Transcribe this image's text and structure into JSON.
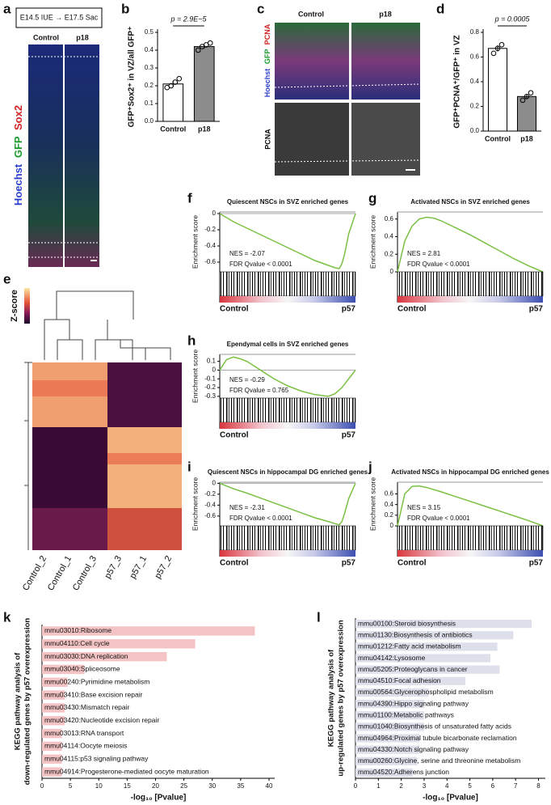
{
  "panel_labels": [
    "a",
    "b",
    "c",
    "d",
    "e",
    "f",
    "g",
    "h",
    "i",
    "j",
    "k",
    "l"
  ],
  "panel_a": {
    "header": "E14.5 IUE → E17.5 Sac",
    "columns": [
      "Control",
      "p18"
    ],
    "stains": [
      "Hoechst",
      "GFP",
      "Sox2"
    ]
  },
  "panel_c": {
    "columns": [
      "Control",
      "p18"
    ],
    "stains": [
      "Hoechst",
      "GFP",
      "PCNA"
    ],
    "stain_bottom": "PCNA"
  },
  "panel_e": {
    "legend_title": "Z-score",
    "samples": [
      "Control_2",
      "Control_1",
      "Control_3",
      "p57_3",
      "p57_1",
      "p57_2"
    ]
  },
  "chart_data": [
    {
      "type": "bar",
      "ylabel": "GFP⁺Sox2⁺ in VZ/all GFP⁺",
      "annotation": "p = 2.9E−5",
      "categories": [
        "Control",
        "p18"
      ],
      "values": [
        0.21,
        0.42
      ],
      "errors": [
        0.015,
        0.012
      ],
      "points": [
        [
          0.19,
          0.2,
          0.22,
          0.24
        ],
        [
          0.4,
          0.42,
          0.43,
          0.44
        ]
      ],
      "colors": [
        "#ffffff",
        "#8c8c8c"
      ],
      "ylim": [
        0,
        0.5
      ],
      "yticks": [
        {
          "value": 0,
          "label": "0.0"
        },
        0.1,
        0.2,
        0.3,
        0.4,
        0.5
      ]
    },
    {
      "type": "bar",
      "ylabel": "GFP⁺PCNA⁺/GFP⁺ in VZ",
      "annotation": "p = 0.0005",
      "categories": [
        "Control",
        "p18"
      ],
      "values": [
        0.67,
        0.28
      ],
      "errors": [
        0.025,
        0.02
      ],
      "points": [
        [
          0.63,
          0.67,
          0.7
        ],
        [
          0.25,
          0.28,
          0.31
        ]
      ],
      "colors": [
        "#ffffff",
        "#8c8c8c"
      ],
      "ylim": [
        0,
        0.8
      ],
      "yticks": [
        {
          "value": 0,
          "label": "0.0"
        },
        0.2,
        0.4,
        0.6,
        0.8
      ]
    },
    {
      "type": "line",
      "title": "Quiescent NSCs in SVZ enriched genes",
      "ylabel": "Enrichment score",
      "annotations": [
        "NES = -2.07",
        "FDR Qvalue < 0.0001"
      ],
      "left_label": "Control",
      "right_label": "p57",
      "color": "#7ac143",
      "x": [
        0,
        5,
        10,
        20,
        30,
        40,
        50,
        60,
        70,
        80,
        85,
        88,
        90,
        92,
        95,
        100
      ],
      "values": [
        0,
        -0.05,
        -0.1,
        -0.18,
        -0.26,
        -0.34,
        -0.42,
        -0.5,
        -0.58,
        -0.64,
        -0.67,
        -0.68,
        -0.62,
        -0.5,
        -0.25,
        0
      ],
      "xlim": [
        0,
        100
      ],
      "ylim": [
        -0.72,
        0.02
      ],
      "yticks": [
        0,
        -0.2,
        -0.4,
        -0.6
      ]
    },
    {
      "type": "line",
      "title": "Activated NSCs in SVZ enriched genes",
      "ylabel": "Enrichment score",
      "annotations": [
        "NES = 2.81",
        "FDR Qvalue < 0.0001"
      ],
      "left_label": "Control",
      "right_label": "p57",
      "color": "#7ac143",
      "x": [
        0,
        5,
        10,
        15,
        20,
        25,
        30,
        40,
        50,
        60,
        70,
        80,
        90,
        100
      ],
      "values": [
        0,
        0.35,
        0.52,
        0.6,
        0.62,
        0.61,
        0.58,
        0.5,
        0.42,
        0.33,
        0.24,
        0.15,
        0.07,
        0
      ],
      "xlim": [
        0,
        100
      ],
      "ylim": [
        0,
        0.68
      ],
      "yticks": [
        0,
        0.2,
        0.4,
        0.6
      ]
    },
    {
      "type": "line",
      "title": "Ependymal cells in SVZ enriched genes",
      "ylabel": "Enrichment score",
      "annotations": [
        "NES = -0.29",
        "FDR Qvalue = 0.765"
      ],
      "left_label": "Control",
      "right_label": "p57",
      "color": "#7ac143",
      "x": [
        0,
        5,
        10,
        15,
        20,
        30,
        40,
        50,
        60,
        70,
        75,
        80,
        85,
        90,
        95,
        100
      ],
      "values": [
        0,
        0.12,
        0.15,
        0.13,
        0.1,
        0,
        -0.1,
        -0.18,
        -0.24,
        -0.28,
        -0.29,
        -0.3,
        -0.27,
        -0.2,
        -0.1,
        0
      ],
      "xlim": [
        0,
        100
      ],
      "ylim": [
        -0.32,
        0.18
      ],
      "yticks": [
        0.1,
        0,
        -0.1,
        -0.2,
        -0.3
      ]
    },
    {
      "type": "line",
      "title": "Quiescent NSCs in hippocampal DG enriched genes",
      "ylabel": "Enrichment score",
      "annotations": [
        "NES = -2.31",
        "FDR Qvalue < 0.0001"
      ],
      "left_label": "Control",
      "right_label": "p57",
      "color": "#7ac143",
      "x": [
        0,
        5,
        10,
        20,
        30,
        40,
        50,
        60,
        70,
        80,
        85,
        88,
        90,
        92,
        95,
        100
      ],
      "values": [
        0,
        -0.05,
        -0.1,
        -0.18,
        -0.27,
        -0.36,
        -0.45,
        -0.54,
        -0.63,
        -0.7,
        -0.74,
        -0.76,
        -0.7,
        -0.55,
        -0.28,
        0
      ],
      "xlim": [
        0,
        100
      ],
      "ylim": [
        -0.78,
        0.02
      ],
      "yticks": [
        0,
        -0.2,
        -0.4,
        -0.6
      ]
    },
    {
      "type": "line",
      "title": "Activated NSCs in hippocampal DG enriched genes",
      "ylabel": "Enrichment score",
      "annotations": [
        "NES = 3.15",
        "FDR Qvalue < 0.0001"
      ],
      "left_label": "Control",
      "right_label": "p57",
      "color": "#7ac143",
      "x": [
        0,
        5,
        10,
        15,
        20,
        30,
        40,
        50,
        60,
        70,
        80,
        90,
        100
      ],
      "values": [
        0,
        0.6,
        0.74,
        0.75,
        0.72,
        0.64,
        0.55,
        0.46,
        0.37,
        0.28,
        0.19,
        0.1,
        0
      ],
      "xlim": [
        0,
        100
      ],
      "ylim": [
        0,
        0.82
      ],
      "yticks": [
        0,
        0.2,
        0.4,
        0.6
      ]
    },
    {
      "type": "hbar",
      "ylabel": [
        "KEGG pathway analysis of",
        "down-regulated genes by p57 overexpression"
      ],
      "xlabel": "-log₁₀ [Pvalue]",
      "categories": [
        "mmu03010:Ribosome",
        "mmu04110:Cell cycle",
        "mmu03030:DNA replication",
        "mmu03040:Spliceosome",
        "mmu00240:Pyrimidine metabolism",
        "mmu03410:Base excision repair",
        "mmu03430:Mismatch repair",
        "mmu03420:Nucleotide excision repair",
        "mmu03013:RNA transport",
        "mmu04114:Oocyte meiosis",
        "mmu04115:p53 signaling pathway",
        "mmu04914:Progesterone-mediated oocyte maturation"
      ],
      "values": [
        37.5,
        27,
        22,
        7.5,
        4.5,
        4,
        4,
        4,
        3.5,
        3.5,
        3.5,
        3.5
      ],
      "color": "#f4c4c4",
      "xlim": [
        0,
        41
      ],
      "xticks": [
        0,
        5,
        10,
        15,
        20,
        25,
        30,
        35,
        40
      ]
    },
    {
      "type": "hbar",
      "ylabel": [
        "KEGG pathway analysis of",
        "up-regulated genes by p57 overexpression"
      ],
      "xlabel": "-log₁₀ [Pvalue]",
      "categories": [
        "mmu00100:Steroid biosynthesis",
        "mmu01130:Biosynthesis of antibiotics",
        "mmu01212:Fatty acid metabolism",
        "mmu04142:Lysosome",
        "mmu05205:Proteoglycans in cancer",
        "mmu04510:Focal adhesion",
        "mmu00564:Glycerophospholipid metabolism",
        "mmu04390:Hippo signaling pathway",
        "mmu01100:Metabolic pathways",
        "mmu01040:Biosynthesis of unsaturated fatty acids",
        "mmu04964:Proximal tubule bicarbonate reclamation",
        "mmu04330:Notch signaling pathway",
        "mmu00260:Glycine, serine and threonine metabolism",
        "mmu04520:Adherens junction"
      ],
      "values": [
        7.7,
        6.9,
        6.2,
        5.9,
        6.3,
        4.8,
        3.2,
        3.0,
        3.0,
        3.0,
        2.8,
        2.8,
        2.7,
        2.5
      ],
      "color": "#dde0ea",
      "xlim": [
        0,
        8.3
      ],
      "xticks": [
        0,
        1,
        2,
        3,
        4,
        5,
        6,
        7,
        8
      ]
    }
  ]
}
